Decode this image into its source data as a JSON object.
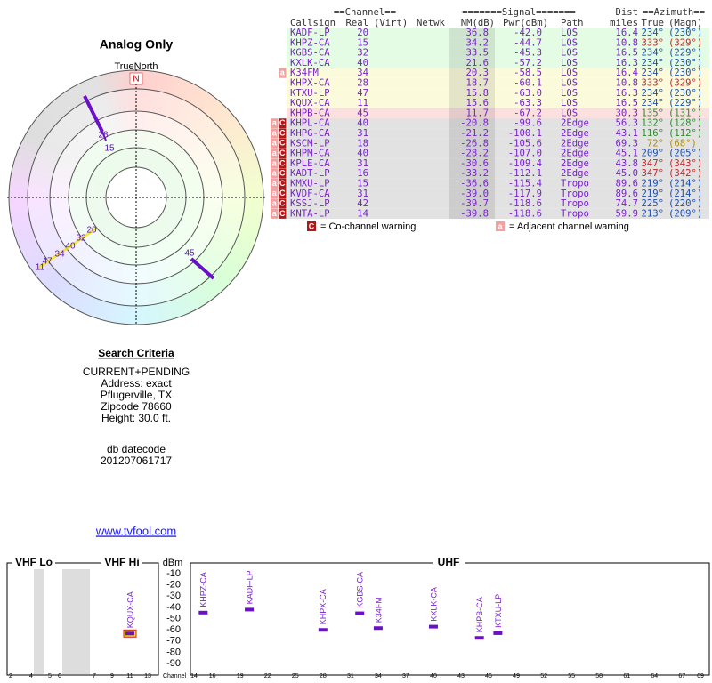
{
  "polar": {
    "title": "Analog Only",
    "north_label": "TrueNorth",
    "north": "N"
  },
  "table": {
    "group_headers": {
      "channel": "==Channel==",
      "signal": "=======Signal=======",
      "dist": "Dist",
      "azimuth": "==Azimuth=="
    },
    "columns": [
      "Callsign",
      "Real",
      "(Virt)",
      "Netwk",
      "NM(dB)",
      "Pwr(dBm)",
      "Path",
      "miles",
      "True",
      "(Magn)"
    ],
    "rows": [
      {
        "warnings": [],
        "callsign": "KADF-LP",
        "real": 20,
        "nm": "36.8",
        "pwr": {
          "value": -42,
          "label": "-42.0"
        },
        "path": "LOS",
        "dist": "16.4",
        "true": "234°",
        "magn": "(230°)",
        "bg": "#e4fbe4",
        "az_color": "#1c4fb0"
      },
      {
        "warnings": [],
        "callsign": "KHPZ-CA",
        "real": 15,
        "nm": "34.2",
        "pwr": {
          "value": -44.7,
          "label": "-44.7"
        },
        "path": "LOS",
        "dist": "10.8",
        "true": "333°",
        "magn": "(329°)",
        "bg": "#e4fbe4",
        "az_color": "#c0282c"
      },
      {
        "warnings": [],
        "callsign": "KGBS-CA",
        "real": 32,
        "nm": "33.5",
        "pwr": {
          "value": -45.3,
          "label": "-45.3"
        },
        "path": "LOS",
        "dist": "16.5",
        "true": "234°",
        "magn": "(229°)",
        "bg": "#e4fbe4",
        "az_color": "#1c4fb0"
      },
      {
        "warnings": [],
        "callsign": "KXLK-CA",
        "real": 40,
        "nm": "21.6",
        "pwr": {
          "value": -57.2,
          "label": "-57.2"
        },
        "path": "LOS",
        "dist": "16.3",
        "true": "234°",
        "magn": "(230°)",
        "bg": "#e4fbe4",
        "az_color": "#1c4fb0"
      },
      {
        "warnings": [
          "a"
        ],
        "callsign": "K34FM",
        "real": 34,
        "nm": "20.3",
        "pwr": {
          "value": -58.5,
          "label": "-58.5"
        },
        "path": "LOS",
        "dist": "16.4",
        "true": "234°",
        "magn": "(230°)",
        "bg": "#fbfbdc",
        "az_color": "#1c4fb0"
      },
      {
        "warnings": [],
        "callsign": "KHPX-CA",
        "real": 28,
        "nm": "18.7",
        "pwr": {
          "value": -60.1,
          "label": "-60.1"
        },
        "path": "LOS",
        "dist": "10.8",
        "true": "333°",
        "magn": "(329°)",
        "bg": "#fbfbdc",
        "az_color": "#c0282c"
      },
      {
        "warnings": [],
        "callsign": "KTXU-LP",
        "real": 47,
        "nm": "15.8",
        "pwr": {
          "value": -63,
          "label": "-63.0"
        },
        "path": "LOS",
        "dist": "16.3",
        "true": "234°",
        "magn": "(230°)",
        "bg": "#fbfbdc",
        "az_color": "#1c4fb0"
      },
      {
        "warnings": [],
        "callsign": "KQUX-CA",
        "real": 11,
        "nm": "15.6",
        "pwr": {
          "value": -63.3,
          "label": "-63.3"
        },
        "path": "LOS",
        "dist": "16.5",
        "true": "234°",
        "magn": "(229°)",
        "bg": "#fbfbdc",
        "az_color": "#1c4fb0"
      },
      {
        "warnings": [],
        "callsign": "KHPB-CA",
        "real": 45,
        "nm": "11.7",
        "pwr": {
          "value": -67.2,
          "label": "-67.2"
        },
        "path": "LOS",
        "dist": "30.3",
        "true": "135°",
        "magn": "(131°)",
        "bg": "#fbe0e0",
        "az_color": "#2e8b2e"
      },
      {
        "warnings": [
          "a",
          "C"
        ],
        "callsign": "KHPL-CA",
        "real": 40,
        "nm": "-20.8",
        "pwr": {
          "value": -99.6,
          "label": "-99.6"
        },
        "path": "2Edge",
        "dist": "56.3",
        "true": "132°",
        "magn": "(128°)",
        "bg": "#e2e2e2",
        "az_color": "#2e8b2e"
      },
      {
        "warnings": [
          "a",
          "C"
        ],
        "callsign": "KHPG-CA",
        "real": 31,
        "nm": "-21.2",
        "pwr": {
          "value": -100.1,
          "label": "-100.1"
        },
        "path": "2Edge",
        "dist": "43.1",
        "true": "116°",
        "magn": "(112°)",
        "bg": "#e2e2e2",
        "az_color": "#2e8b2e"
      },
      {
        "warnings": [
          "a",
          "C"
        ],
        "callsign": "KSCM-LP",
        "real": 18,
        "nm": "-26.8",
        "pwr": {
          "value": -105.6,
          "label": "-105.6"
        },
        "path": "2Edge",
        "dist": "69.3",
        "true": "72°",
        "magn": "(68°)",
        "bg": "#e2e2e2",
        "az_color": "#b08f00"
      },
      {
        "warnings": [
          "a",
          "C"
        ],
        "callsign": "KHPM-CA",
        "real": 40,
        "nm": "-28.2",
        "pwr": {
          "value": -107,
          "label": "-107.0"
        },
        "path": "2Edge",
        "dist": "45.1",
        "true": "209°",
        "magn": "(205°)",
        "bg": "#e2e2e2",
        "az_color": "#1c4fb0"
      },
      {
        "warnings": [
          "a",
          "C"
        ],
        "callsign": "KPLE-CA",
        "real": 31,
        "nm": "-30.6",
        "pwr": {
          "value": -109.4,
          "label": "-109.4"
        },
        "path": "2Edge",
        "dist": "43.8",
        "true": "347°",
        "magn": "(343°)",
        "bg": "#e2e2e2",
        "az_color": "#c0282c"
      },
      {
        "warnings": [
          "a",
          "C"
        ],
        "callsign": "KADT-LP",
        "real": 16,
        "nm": "-33.2",
        "pwr": {
          "value": -112.1,
          "label": "-112.1"
        },
        "path": "2Edge",
        "dist": "45.0",
        "true": "347°",
        "magn": "(342°)",
        "bg": "#e2e2e2",
        "az_color": "#c0282c"
      },
      {
        "warnings": [
          "a",
          "C"
        ],
        "callsign": "KMXU-LP",
        "real": 15,
        "nm": "-36.6",
        "pwr": {
          "value": -115.4,
          "label": "-115.4"
        },
        "path": "Tropo",
        "dist": "89.6",
        "true": "219°",
        "magn": "(214°)",
        "bg": "#e2e2e2",
        "az_color": "#1c4fb0"
      },
      {
        "warnings": [
          "a",
          "C"
        ],
        "callsign": "KVDF-CA",
        "real": 31,
        "nm": "-39.0",
        "pwr": {
          "value": -117.9,
          "label": "-117.9"
        },
        "path": "Tropo",
        "dist": "89.6",
        "true": "219°",
        "magn": "(214°)",
        "bg": "#e2e2e2",
        "az_color": "#1c4fb0"
      },
      {
        "warnings": [
          "a",
          "C"
        ],
        "callsign": "KSSJ-LP",
        "real": 42,
        "nm": "-39.7",
        "pwr": {
          "value": -118.6,
          "label": "-118.6"
        },
        "path": "Tropo",
        "dist": "74.7",
        "true": "225°",
        "magn": "(220°)",
        "bg": "#e2e2e2",
        "az_color": "#1c4fb0"
      },
      {
        "warnings": [
          "a",
          "C"
        ],
        "callsign": "KNTA-LP",
        "real": 14,
        "nm": "-39.8",
        "pwr": {
          "value": -118.6,
          "label": "-118.6"
        },
        "path": "Tropo",
        "dist": "59.9",
        "true": "213°",
        "magn": "(209°)",
        "bg": "#e2e2e2",
        "az_color": "#1c4fb0"
      }
    ]
  },
  "legend": {
    "co_mark": "C",
    "co_text": "= Co-channel warning",
    "adj_mark": "a",
    "adj_text": "= Adjacent channel warning"
  },
  "search": {
    "title": "Search Criteria",
    "lines": [
      "CURRENT+PENDING",
      "Address: exact",
      "Pflugerville, TX",
      "Zipcode 78660",
      "Height: 30.0 ft."
    ],
    "db_lines": [
      "db datecode",
      "201207061717"
    ],
    "link": "www.tvfool.com"
  },
  "spectrum": {
    "bands": [
      "VHF Lo",
      "VHF Hi",
      "UHF"
    ],
    "y_label": "dBm",
    "yticks": [
      -10,
      -20,
      -30,
      -40,
      -50,
      -60,
      -70,
      -80,
      -90
    ],
    "x_label": "Channel",
    "xticks": [
      2,
      4,
      5,
      6,
      7,
      9,
      11,
      13,
      14,
      16,
      19,
      22,
      25,
      28,
      31,
      34,
      37,
      40,
      43,
      46,
      49,
      52,
      55,
      58,
      61,
      64,
      67,
      69
    ],
    "bar_color": "#6a10c8"
  }
}
